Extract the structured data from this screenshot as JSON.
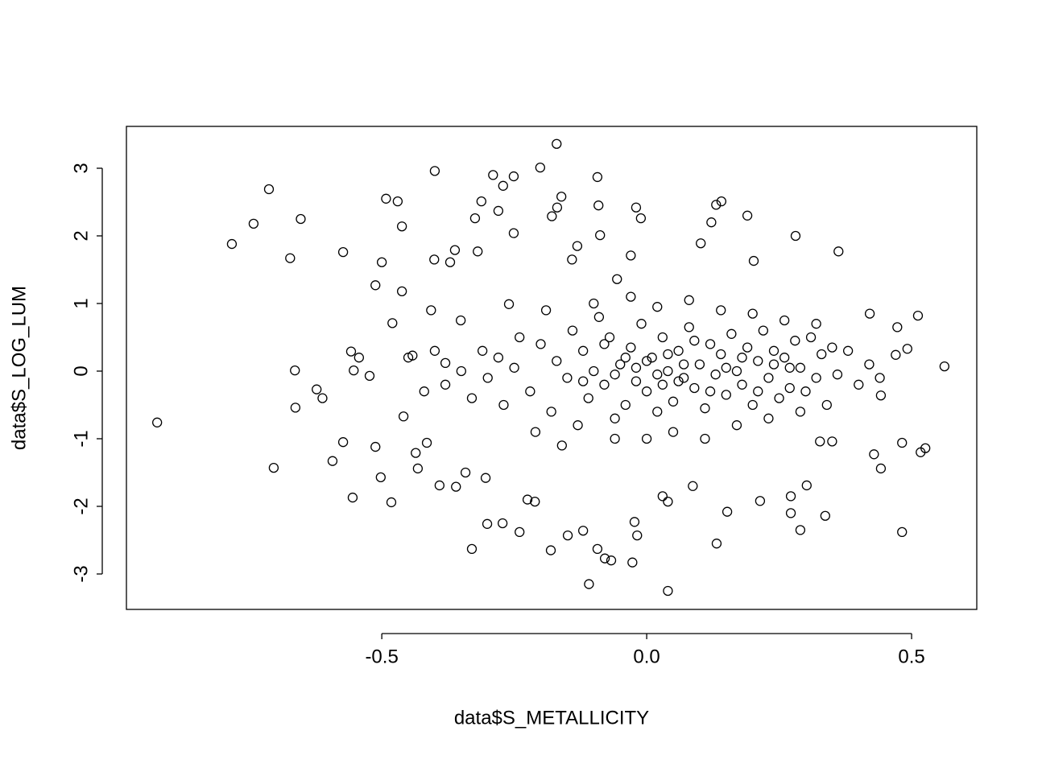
{
  "chart_data": {
    "type": "scatter",
    "x_label": "data$S_METALLICITY",
    "y_label": "data$S_LOG_LUM",
    "color": "#000000",
    "xlim": [
      -0.982,
      0.623
    ],
    "ylim": [
      -3.524,
      3.619
    ],
    "xticks": [
      -0.5,
      {
        "value": 0,
        "label": "0.0"
      },
      0.5
    ],
    "yticks": [
      -3,
      -2,
      -1,
      0,
      1,
      2,
      3
    ],
    "x": [
      -0.924,
      -0.783,
      -0.742,
      -0.713,
      -0.704,
      -0.673,
      -0.664,
      -0.663,
      -0.653,
      -0.623,
      -0.612,
      -0.593,
      -0.573,
      -0.573,
      -0.558,
      -0.555,
      -0.553,
      -0.543,
      -0.523,
      -0.512,
      -0.512,
      -0.502,
      -0.5,
      -0.492,
      -0.482,
      -0.48,
      -0.47,
      -0.462,
      -0.462,
      -0.459,
      -0.442,
      -0.436,
      -0.432,
      -0.415,
      -0.407,
      -0.401,
      -0.4,
      -0.391,
      -0.38,
      -0.371,
      -0.362,
      -0.36,
      -0.351,
      -0.342,
      -0.33,
      -0.324,
      -0.319,
      -0.312,
      -0.304,
      -0.301,
      -0.29,
      -0.28,
      -0.272,
      -0.271,
      -0.26,
      -0.251,
      -0.251,
      -0.24,
      -0.225,
      -0.211,
      -0.201,
      -0.181,
      -0.179,
      -0.17,
      -0.169,
      -0.161,
      -0.149,
      -0.141,
      -0.131,
      -0.12,
      -0.109,
      -0.093,
      -0.093,
      -0.091,
      -0.088,
      -0.079,
      -0.067,
      -0.056,
      -0.03,
      -0.027,
      -0.023,
      -0.02,
      -0.018,
      -0.011,
      0.03,
      0.04,
      0.04,
      0.087,
      0.102,
      0.122,
      0.131,
      0.132,
      0.141,
      0.152,
      0.19,
      0.202,
      0.214,
      0.272,
      0.272,
      0.281,
      0.29,
      0.302,
      0.362,
      0.337,
      0.421,
      0.429,
      0.442,
      0.47,
      0.473,
      0.482,
      0.482,
      0.492,
      0.512,
      0.517,
      0.526,
      0.562,
      0.35,
      0.327,
      0.442,
      -0.25,
      -0.22,
      -0.2,
      -0.18,
      -0.17,
      -0.15,
      -0.14,
      -0.13,
      -0.12,
      -0.11,
      -0.1,
      -0.09,
      -0.08,
      -0.07,
      -0.06,
      -0.05,
      -0.04,
      -0.03,
      -0.02,
      -0.01,
      0,
      0.01,
      0.02,
      0.03,
      0.04,
      0.05,
      0.06,
      0.07,
      0.08,
      0.09,
      0.1,
      0.11,
      0.12,
      0.13,
      0.14,
      0.15,
      0.16,
      0.17,
      0.18,
      0.19,
      0.2,
      0.21,
      0.22,
      0.23,
      0.24,
      0.25,
      0.26,
      0.27,
      0.28,
      0.29,
      0.3,
      0.31,
      0.32,
      0.33,
      0.34,
      0.35,
      0.36,
      0.38,
      0.4,
      0.42,
      0.44,
      -0.3,
      -0.28,
      -0.27,
      -0.24,
      -0.21,
      -0.19,
      -0.16,
      -0.1,
      -0.06,
      -0.03,
      0,
      0.02,
      0.05,
      0.08,
      0.11,
      0.14,
      0.17,
      0.2,
      0.23,
      0.26,
      0.29,
      0.32,
      -0.02,
      0,
      0.02,
      0.04,
      0.06,
      -0.04,
      -0.06,
      0.03,
      0.07,
      0.09,
      -0.08,
      -0.12,
      0.12,
      0.15,
      0.18,
      0.21,
      0.24,
      0.27,
      -0.35,
      -0.33,
      -0.31,
      -0.38,
      -0.4,
      -0.42,
      -0.45
    ],
    "values": [
      -0.76,
      1.88,
      2.18,
      2.69,
      -1.43,
      1.67,
      0.01,
      -0.54,
      2.25,
      -0.27,
      -0.4,
      -1.33,
      1.76,
      -1.05,
      0.29,
      -1.87,
      0.01,
      0.2,
      -0.07,
      -1.12,
      1.27,
      -1.57,
      1.61,
      2.55,
      -1.94,
      0.71,
      2.51,
      2.14,
      1.18,
      -0.67,
      0.23,
      -1.21,
      -1.44,
      -1.06,
      0.9,
      1.65,
      2.96,
      -1.69,
      0.12,
      1.61,
      1.79,
      -1.71,
      0.75,
      -1.5,
      -2.63,
      2.26,
      1.77,
      2.51,
      -1.58,
      -2.26,
      2.9,
      2.37,
      -2.25,
      2.74,
      0.99,
      2.88,
      2.04,
      -2.38,
      -1.9,
      -1.93,
      3.01,
      -2.65,
      2.29,
      3.36,
      2.42,
      2.58,
      -2.43,
      1.65,
      1.85,
      -2.36,
      -3.15,
      2.87,
      -2.63,
      2.45,
      2.01,
      -2.77,
      -2.8,
      1.36,
      1.71,
      -2.83,
      -2.23,
      2.42,
      -2.43,
      2.26,
      -1.85,
      -3.25,
      -1.93,
      -1.7,
      1.89,
      2.2,
      2.46,
      -2.55,
      2.51,
      -2.08,
      2.3,
      1.63,
      -1.92,
      -1.85,
      -2.1,
      2,
      -2.35,
      -1.69,
      1.77,
      -2.14,
      0.85,
      -1.23,
      -1.44,
      0.24,
      0.65,
      -2.38,
      -1.06,
      0.33,
      0.82,
      -1.2,
      -1.14,
      0.07,
      -1.04,
      -1.04,
      -0.36,
      0.05,
      -0.3,
      0.4,
      -0.6,
      0.15,
      -0.1,
      0.6,
      -0.8,
      0.3,
      -0.4,
      0,
      0.8,
      -0.2,
      0.5,
      -0.7,
      0.1,
      -0.5,
      0.35,
      -0.15,
      0.7,
      -0.3,
      0.2,
      -0.6,
      0.5,
      0,
      -0.45,
      0.3,
      -0.1,
      0.65,
      -0.25,
      0.1,
      -0.55,
      0.4,
      -0.05,
      0.25,
      -0.35,
      0.55,
      0,
      -0.2,
      0.35,
      -0.5,
      0.15,
      0.6,
      -0.1,
      0.3,
      -0.4,
      0.2,
      -0.25,
      0.45,
      0.05,
      -0.3,
      0.5,
      -0.1,
      0.25,
      -0.5,
      0.35,
      -0.05,
      0.3,
      -0.2,
      0.1,
      -0.1,
      -0.1,
      0.2,
      -0.5,
      0.5,
      -0.9,
      0.9,
      -1.1,
      1,
      -1,
      1.1,
      -1,
      0.95,
      -0.9,
      1.05,
      -1,
      0.9,
      -0.8,
      0.85,
      -0.7,
      0.75,
      -0.6,
      0.7,
      0.05,
      0.15,
      -0.05,
      0.25,
      -0.15,
      0.2,
      -0.05,
      -0.2,
      0.1,
      0.45,
      0.4,
      -0.15,
      -0.3,
      0.05,
      0.2,
      -0.3,
      0.1,
      0.05,
      0,
      -0.4,
      0.3,
      -0.2,
      0.3,
      -0.3,
      0.2
    ]
  }
}
